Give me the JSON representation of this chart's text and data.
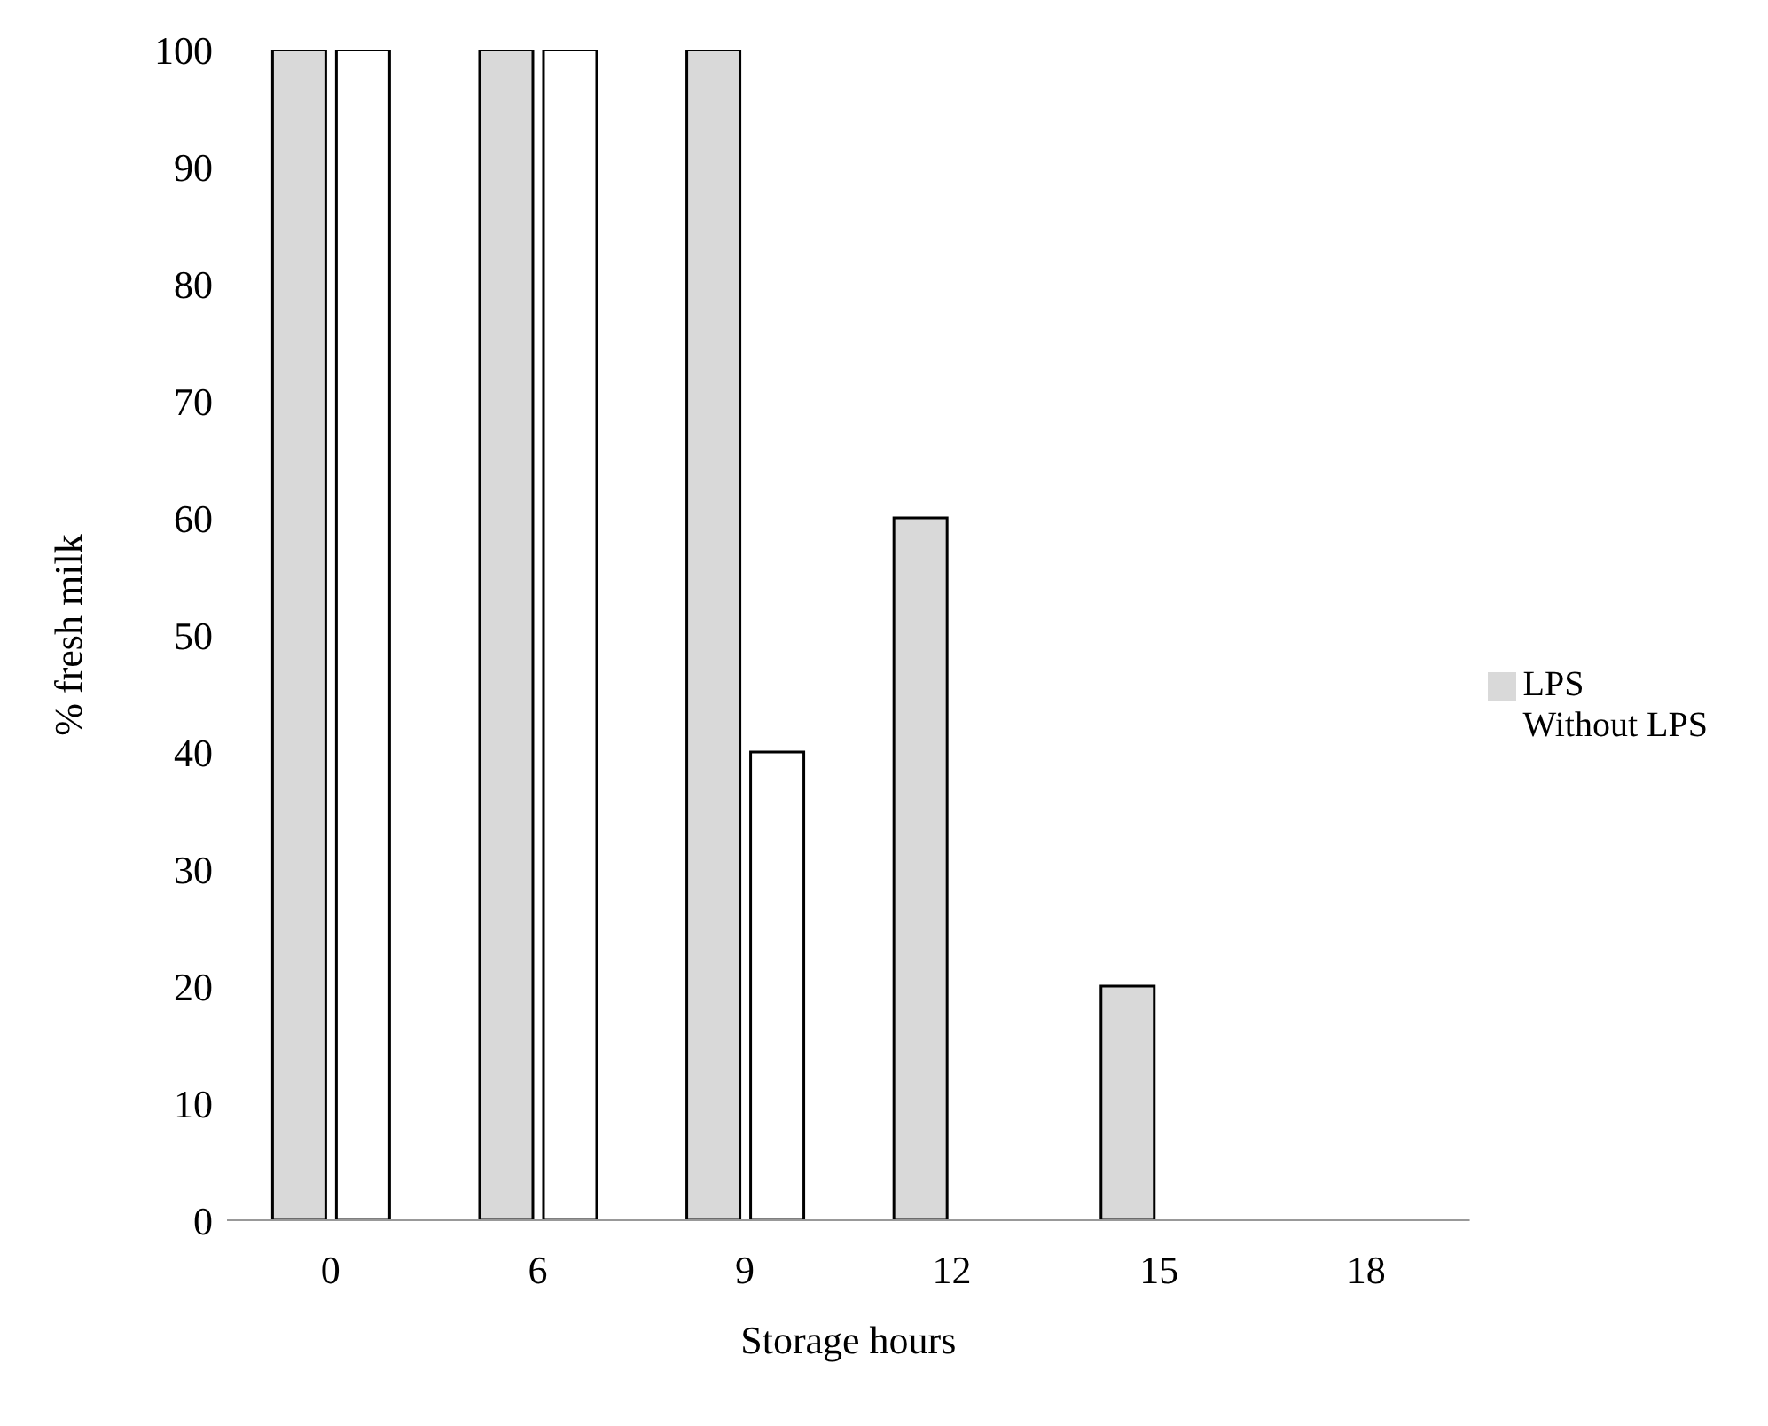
{
  "chart_data": {
    "type": "bar",
    "xlabel": "Storage hours",
    "ylabel": "% fresh milk",
    "categories": [
      "0",
      "6",
      "9",
      "12",
      "15",
      "18"
    ],
    "series": [
      {
        "name": "LPS",
        "color": "#d9d9d9",
        "values": [
          100,
          100,
          100,
          60,
          20,
          0
        ]
      },
      {
        "name": "Without LPS",
        "color": "#ffffff",
        "values": [
          100,
          100,
          40,
          0,
          0,
          0
        ]
      }
    ],
    "ylim": [
      0,
      100
    ],
    "yticks": [
      0,
      10,
      20,
      30,
      40,
      50,
      60,
      70,
      80,
      90,
      100
    ],
    "grid": false,
    "legend": "right"
  }
}
